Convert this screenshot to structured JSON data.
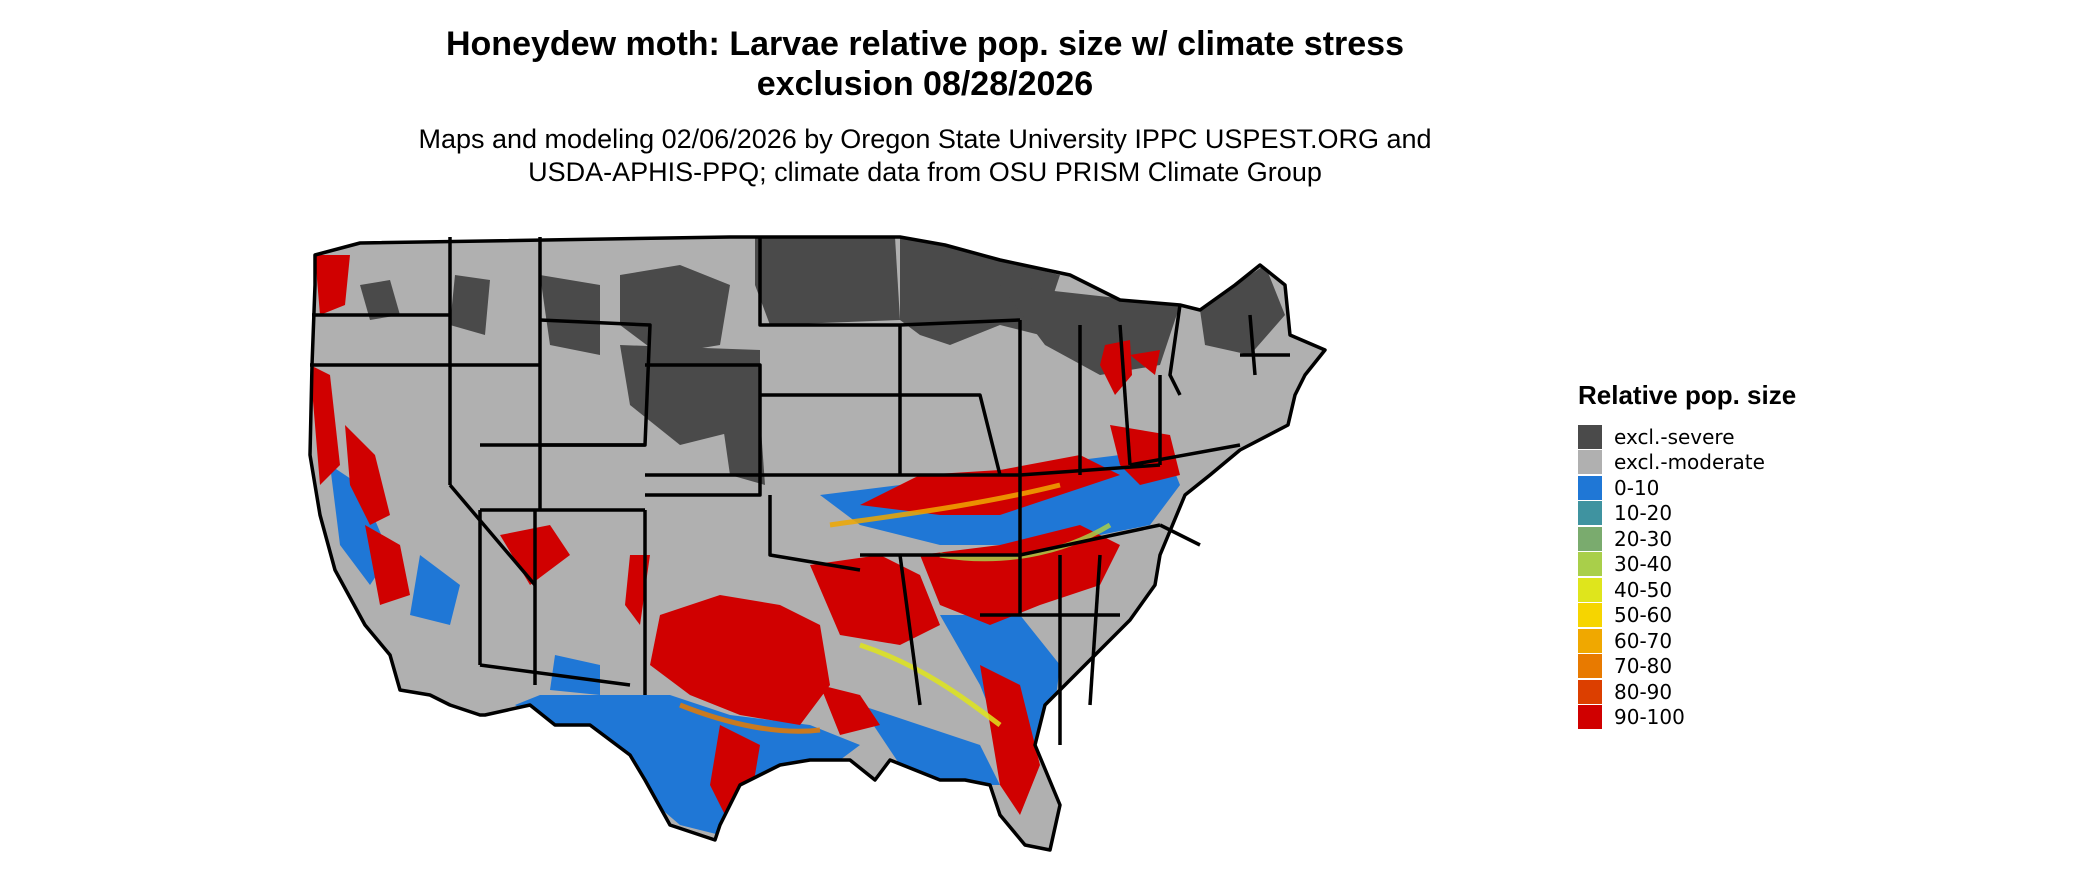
{
  "title": {
    "line1": "Honeydew moth: Larvae relative pop. size w/ climate stress",
    "line2": "exclusion 08/28/2026"
  },
  "subtitle": {
    "line1": "Maps and modeling 02/06/2026 by Oregon State University IPPC USPEST.ORG and",
    "line2": "USDA-APHIS-PPQ; climate data from OSU PRISM Climate Group"
  },
  "legend": {
    "title": "Relative pop. size",
    "items": [
      {
        "label": "excl.-severe",
        "color": "#4a4a4a"
      },
      {
        "label": "excl.-moderate",
        "color": "#b0b0b0"
      },
      {
        "label": "0-10",
        "color": "#1f77d6"
      },
      {
        "label": "10-20",
        "color": "#3f93a0"
      },
      {
        "label": "20-30",
        "color": "#7aab6e"
      },
      {
        "label": "30-40",
        "color": "#a9cf4a"
      },
      {
        "label": "40-50",
        "color": "#dfe51c"
      },
      {
        "label": "50-60",
        "color": "#f6d500"
      },
      {
        "label": "60-70",
        "color": "#f0a800"
      },
      {
        "label": "70-80",
        "color": "#e87a00"
      },
      {
        "label": "80-90",
        "color": "#dc3f00"
      },
      {
        "label": "90-100",
        "color": "#d00000"
      }
    ]
  }
}
